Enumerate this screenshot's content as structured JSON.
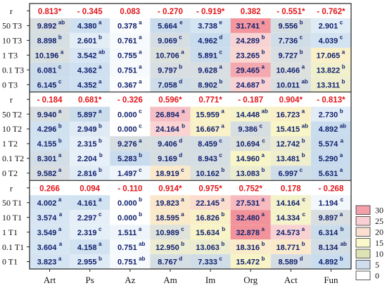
{
  "chart_data": {
    "type": "heatmap",
    "columns": [
      "Art",
      "Ps",
      "Az",
      "Am",
      "Im",
      "Org",
      "Act",
      "Fun"
    ],
    "groups": [
      {
        "name": "T3",
        "r": [
          "0.813*",
          "- 0.345",
          "0.083",
          "- 0.270",
          "- 0.919*",
          "0.382",
          "- 0.551*",
          "- 0.762*"
        ],
        "rows": [
          {
            "label": "50 T3",
            "values": [
              9.892,
              4.38,
              0.378,
              5.664,
              3.738,
              31.741,
              9.556,
              2.901
            ],
            "text": [
              "9.892",
              "4.380",
              "0.378",
              "5.664",
              "3.738",
              "31.741",
              "9.556",
              "2.901"
            ],
            "letters": [
              "ab",
              "a",
              "a",
              "e",
              "e",
              "a",
              "b",
              "c"
            ]
          },
          {
            "label": "10 T3",
            "values": [
              8.898,
              2.601,
              0.761,
              9.069,
              4.962,
              24.289,
              7.736,
              4.039
            ],
            "text": [
              "8.898",
              "2.601",
              "0.761",
              "9.069",
              "4.962",
              "24.289",
              "7.736",
              "4.039"
            ],
            "letters": [
              "b",
              "b",
              "a",
              "c",
              "d",
              "b",
              "c",
              "c"
            ]
          },
          {
            "label": "1 T3",
            "values": [
              10.196,
              3.542,
              0.755,
              10.706,
              5.891,
              23.265,
              9.727,
              17.065
            ],
            "text": [
              "10.196",
              "3.542",
              "0.755",
              "10.706",
              "5.891",
              "23.265",
              "9.727",
              "17.065"
            ],
            "letters": [
              "a",
              "ab",
              "a",
              "a",
              "c",
              "b",
              "b",
              "a"
            ]
          },
          {
            "label": "0.1 T3",
            "values": [
              6.081,
              4.362,
              0.751,
              9.797,
              9.628,
              29.465,
              10.466,
              13.822
            ],
            "text": [
              "6.081",
              "4.362",
              "0.751",
              "9.797",
              "9.628",
              "29.465",
              "10.466",
              "13.822"
            ],
            "letters": [
              "c",
              "a",
              "a",
              "b",
              "a",
              "a",
              "a",
              "b"
            ]
          },
          {
            "label": "0 T3",
            "values": [
              6.145,
              4.352,
              0.367,
              7.058,
              8.902,
              24.687,
              10.011,
              13.311
            ],
            "text": [
              "6.145",
              "4.352",
              "0.367",
              "7.058",
              "8.902",
              "24.687",
              "10.011",
              "13.311"
            ],
            "letters": [
              "c",
              "a",
              "a",
              "d",
              "b",
              "b",
              "ab",
              "b"
            ]
          }
        ]
      },
      {
        "name": "T2",
        "r": [
          "- 0.184",
          "0.681*",
          "- 0.326",
          "0.596*",
          "0.771*",
          "- 0.187",
          "0.904*",
          "- 0.813*"
        ],
        "rows": [
          {
            "label": "50 T2",
            "values": [
              9.94,
              5.897,
              0.0,
              26.894,
              15.959,
              14.448,
              16.723,
              2.73
            ],
            "text": [
              "9.940",
              "5.897",
              "0.000",
              "26.894",
              "15.959",
              "14.448",
              "16.723",
              "2.730"
            ],
            "letters": [
              "a",
              "a",
              "c",
              "a",
              "a",
              "ab",
              "a",
              "b"
            ]
          },
          {
            "label": "10 T2",
            "values": [
              4.296,
              2.949,
              0.0,
              24.164,
              16.667,
              9.386,
              15.415,
              4.892
            ],
            "text": [
              "4.296",
              "2.949",
              "0.000",
              "24.164",
              "16.667",
              "9.386",
              "15.415",
              "4.892"
            ],
            "letters": [
              "b",
              "b",
              "c",
              "b",
              "a",
              "c",
              "ab",
              "ab"
            ]
          },
          {
            "label": "1 T2",
            "values": [
              4.155,
              2.315,
              9.276,
              9.406,
              8.459,
              10.694,
              12.742,
              5.574
            ],
            "text": [
              "4.155",
              "2.315",
              "9.276",
              "9.406",
              "8.459",
              "10.694",
              "12.742",
              "5.574"
            ],
            "letters": [
              "b",
              "b",
              "a",
              "d",
              "c",
              "c",
              "b",
              "a"
            ]
          },
          {
            "label": "0.1 T2",
            "values": [
              8.301,
              2.204,
              5.283,
              9.169,
              8.943,
              14.96,
              13.481,
              5.29
            ],
            "text": [
              "8.301",
              "2.204",
              "5.283",
              "9.169",
              "8.943",
              "14.960",
              "13.481",
              "5.290"
            ],
            "letters": [
              "a",
              "b",
              "b",
              "d",
              "c",
              "a",
              "b",
              "a"
            ]
          },
          {
            "label": "0 T2",
            "values": [
              9.582,
              2.816,
              1.497,
              18.919,
              10.162,
              13.083,
              6.997,
              5.631
            ],
            "text": [
              "9.582",
              "2.816",
              "1.497",
              "18.919",
              "10.162",
              "13.083",
              "6.997",
              "5.631"
            ],
            "letters": [
              "a",
              "b",
              "c",
              "c",
              "b",
              "b",
              "c",
              "a"
            ]
          }
        ]
      },
      {
        "name": "T1",
        "r": [
          "0.266",
          "0.094",
          "- 0.110",
          "0.914*",
          "0.975*",
          "0.752*",
          "0.178",
          "- 0.268"
        ],
        "rows": [
          {
            "label": "50 T1",
            "values": [
              4.002,
              4.161,
              0.0,
              19.823,
              22.145,
              27.531,
              14.164,
              1.194
            ],
            "text": [
              "4.002",
              "4.161",
              "0.000",
              "19.823",
              "22.145",
              "27.531",
              "14.164",
              "1.194"
            ],
            "letters": [
              "a",
              "a",
              "b",
              "a",
              "a",
              "a",
              "c",
              "c"
            ]
          },
          {
            "label": "10 T1",
            "values": [
              3.574,
              2.297,
              0.0,
              18.595,
              16.826,
              32.48,
              14.334,
              9.897
            ],
            "text": [
              "3.574",
              "2.297",
              "0.000",
              "18.595",
              "16.826",
              "32.480",
              "14.334",
              "9.897"
            ],
            "letters": [
              "a",
              "c",
              "b",
              "a",
              "b",
              "a",
              "c",
              "a"
            ]
          },
          {
            "label": "1 T1",
            "values": [
              3.549,
              2.319,
              1.511,
              10.989,
              15.634,
              32.878,
              24.573,
              6.314
            ],
            "text": [
              "3.549",
              "2.319",
              "1.511",
              "10.989",
              "15.634",
              "32.878",
              "24.573",
              "6.314"
            ],
            "letters": [
              "a",
              "c",
              "a",
              "c",
              "b",
              "a",
              "a",
              "b"
            ]
          },
          {
            "label": "0.1 T1",
            "values": [
              3.604,
              4.158,
              0.751,
              12.95,
              13.063,
              18.316,
              18.771,
              8.134
            ],
            "text": [
              "3.604",
              "4.158",
              "0.751",
              "12.950",
              "13.063",
              "18.316",
              "18.771",
              "8.134"
            ],
            "letters": [
              "a",
              "a",
              "ab",
              "b",
              "b",
              "b",
              "b",
              "ab"
            ]
          },
          {
            "label": "0 T1",
            "values": [
              3.823,
              2.955,
              0.751,
              8.767,
              7.333,
              15.472,
              8.589,
              4.892
            ],
            "text": [
              "3.823",
              "2.955",
              "0.751",
              "8.767",
              "7.333",
              "15.472",
              "8.589",
              "4.892"
            ],
            "letters": [
              "a",
              "b",
              "ab",
              "d",
              "c",
              "b",
              "d",
              "b"
            ]
          }
        ]
      }
    ],
    "r_label": "r",
    "legend": {
      "ticks": [
        "30",
        "25",
        "20",
        "15",
        "10",
        "5",
        "0"
      ],
      "colors": [
        "#f4a0a8",
        "#f9cfd3",
        "#fbe0cf",
        "#fbf9cc",
        "#dde3b4",
        "#d0ddec",
        "#ffffff"
      ],
      "placement": "right"
    },
    "color_scale": {
      "stops": [
        {
          "v": 0,
          "c": "#ffffff"
        },
        {
          "v": 5,
          "c": "#c8dcee"
        },
        {
          "v": 10,
          "c": "#d9dee0"
        },
        {
          "v": 15,
          "c": "#f8f6c6"
        },
        {
          "v": 20,
          "c": "#fbe6cc"
        },
        {
          "v": 25,
          "c": "#f8d0d4"
        },
        {
          "v": 32,
          "c": "#f2939b"
        }
      ]
    }
  }
}
